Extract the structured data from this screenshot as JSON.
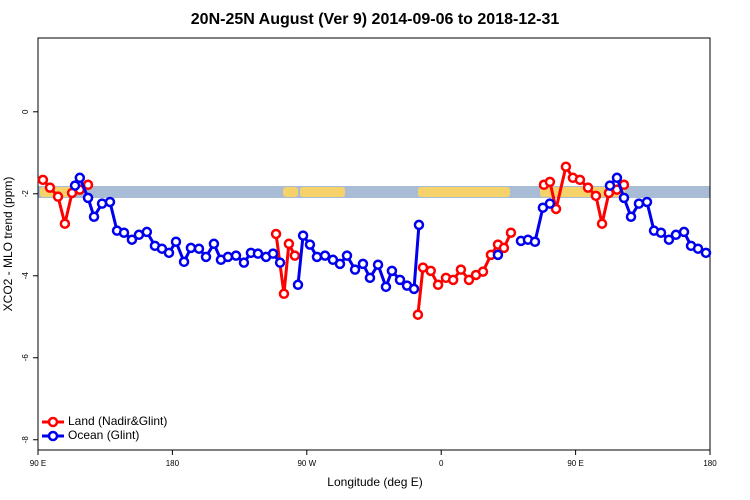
{
  "chart_data": {
    "type": "line",
    "title": "20N-25N August (Ver 9)   2014-09-06 to 2018-12-31",
    "xlabel": "Longitude (deg E)",
    "ylabel": "XCO2 - MLO trend (ppm)",
    "xlim": [
      90,
      540
    ],
    "ylim": [
      -8.25,
      1.8
    ],
    "xticks": [
      {
        "value": 90,
        "label": "90 E"
      },
      180,
      {
        "value": 270,
        "label": "90 W"
      },
      {
        "value": 360,
        "label": "0"
      },
      {
        "value": 450,
        "label": "90 E"
      },
      {
        "value": 540,
        "label": "180"
      }
    ],
    "yticks": [
      0,
      -2,
      -4,
      -6,
      -8
    ],
    "legend": "bottom-left",
    "series": [
      {
        "name": "Land (Nadir&Glint)",
        "color": "#ff0000",
        "x": [
          93.3,
          98,
          103.4,
          108,
          112.8,
          118,
          123.5,
          null,
          249.4,
          254.7,
          258,
          262,
          null,
          344.4,
          347.8,
          353,
          357.9,
          363.2,
          368,
          373.2,
          378.6,
          383.3,
          388,
          393.3,
          398,
          402,
          406.7,
          null,
          428.8,
          432.8,
          436.9,
          443.5,
          448.2,
          452.9,
          458.3,
          463.6,
          467.7,
          472.3,
          477.7,
          482.4
        ],
        "values": [
          -1.66,
          -1.85,
          -2.07,
          -2.73,
          -1.98,
          -1.9,
          -1.78,
          null,
          -2.98,
          -4.44,
          -3.22,
          -3.51,
          null,
          -4.95,
          -3.8,
          -3.88,
          -4.22,
          -4.05,
          -4.1,
          -3.85,
          -4.1,
          -3.98,
          -3.9,
          -3.49,
          -3.24,
          -3.32,
          -2.95,
          null,
          -1.78,
          -1.71,
          -2.37,
          -1.34,
          -1.61,
          -1.66,
          -1.85,
          -2.05,
          -2.73,
          -1.98,
          -1.9,
          -1.78
        ]
      },
      {
        "name": "Ocean (Glint)",
        "color": "#0000ee",
        "x": [
          114.8,
          118,
          123.5,
          127.5,
          132.9,
          138.2,
          142.9,
          147.6,
          152.9,
          157.6,
          162.9,
          168.3,
          173,
          177.7,
          182.4,
          187.8,
          192.4,
          197.8,
          202.5,
          207.8,
          212.5,
          217.2,
          222.6,
          227.9,
          232.6,
          237.3,
          242.7,
          247.4,
          252.1,
          null,
          264.1,
          267.5,
          272.1,
          276.8,
          282.2,
          287.5,
          292.2,
          296.9,
          302.3,
          307.6,
          312.3,
          317.7,
          323,
          327,
          332.4,
          337.1,
          341.8,
          345.1,
          null,
          398,
          null,
          413.4,
          418.1,
          422.8,
          428.1,
          432.8,
          null,
          473,
          477.7,
          482.4,
          487.1,
          492.4,
          497.8,
          502.5,
          507.2,
          512.5,
          517.2,
          522.6,
          527.3,
          532,
          537.3
        ],
        "values": [
          -1.8,
          -1.61,
          -2.1,
          -2.56,
          -2.24,
          -2.2,
          -2.9,
          -2.95,
          -3.12,
          -3,
          -2.93,
          -3.27,
          -3.34,
          -3.44,
          -3.17,
          -3.66,
          -3.32,
          -3.34,
          -3.54,
          -3.22,
          -3.61,
          -3.54,
          -3.51,
          -3.68,
          -3.44,
          -3.46,
          -3.54,
          -3.46,
          -3.68,
          null,
          -4.22,
          -3.02,
          -3.24,
          -3.54,
          -3.51,
          -3.61,
          -3.71,
          -3.51,
          -3.85,
          -3.71,
          -4.05,
          -3.73,
          -4.27,
          -3.88,
          -4.1,
          -4.24,
          -4.32,
          -2.76,
          null,
          -3.49,
          null,
          -3.15,
          -3.12,
          -3.17,
          -2.34,
          -2.24,
          null,
          -1.8,
          -1.61,
          -2.1,
          -2.56,
          -2.24,
          -2.2,
          -2.9,
          -2.95,
          -3.12,
          -3,
          -2.93,
          -3.27,
          -3.34,
          -3.44
        ]
      }
    ]
  }
}
